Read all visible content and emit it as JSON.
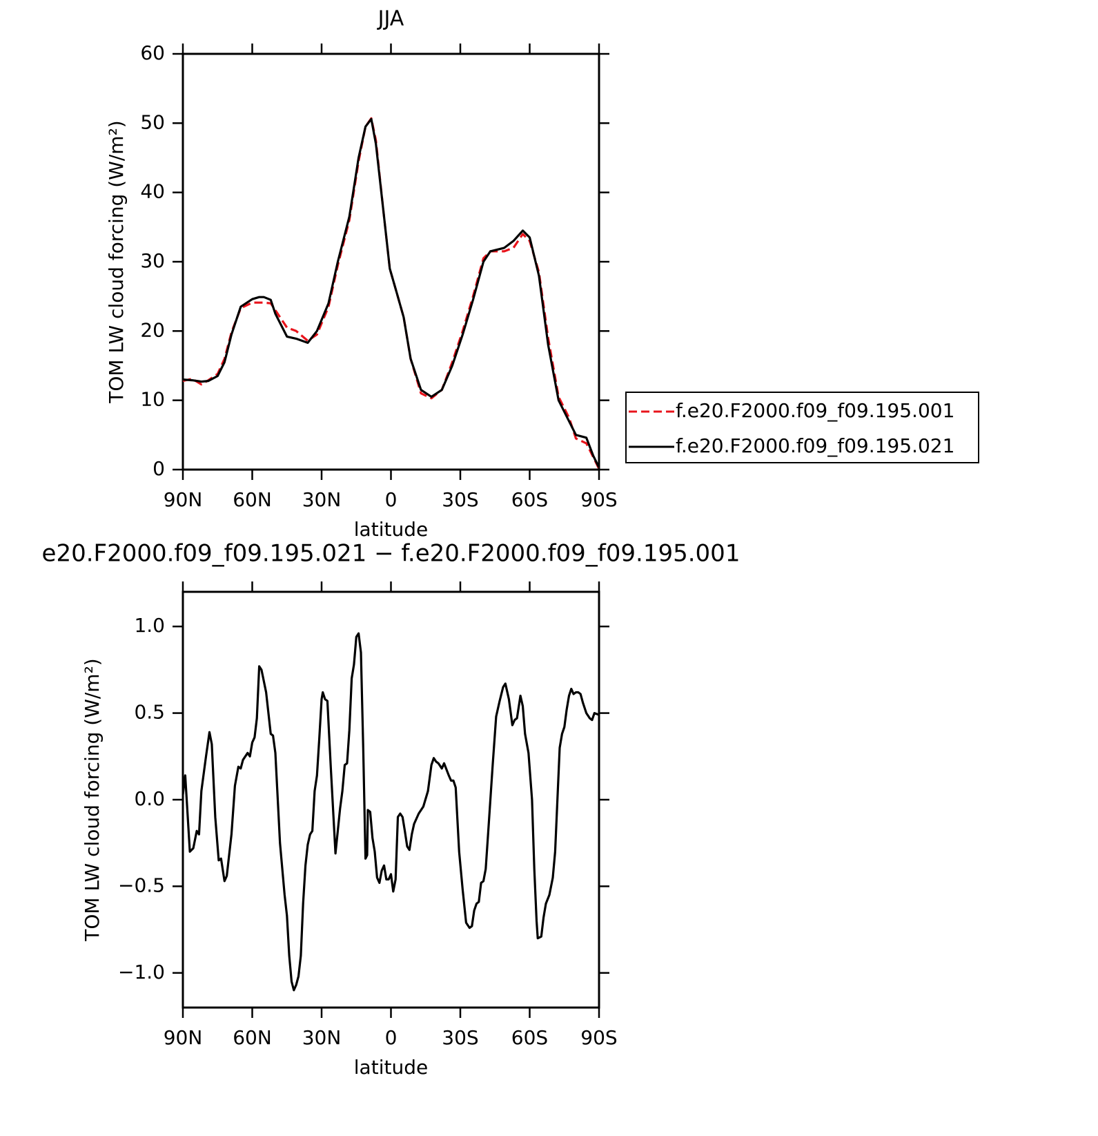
{
  "chart_data": [
    {
      "type": "line",
      "title": "JJA",
      "x_label": "latitude",
      "y_label": "TOM LW cloud forcing (W/m²)",
      "xlim": [
        90,
        -90
      ],
      "ylim": [
        0,
        60
      ],
      "xticks": [
        {
          "value": 90,
          "label": "90N"
        },
        {
          "value": 60,
          "label": "60N"
        },
        {
          "value": 30,
          "label": "30N"
        },
        0,
        {
          "value": -30,
          "label": "30S"
        },
        {
          "value": -60,
          "label": "60S"
        },
        {
          "value": -90,
          "label": "90S"
        }
      ],
      "yticks": [
        0,
        10,
        20,
        30,
        40,
        50,
        60
      ],
      "legend": "right",
      "x": [
        90,
        86,
        82,
        79,
        75,
        72,
        69,
        65,
        60,
        57,
        55,
        52,
        50,
        45,
        41,
        36,
        32,
        27,
        23,
        18,
        14,
        11,
        8.5,
        6.5,
        3.5,
        0.5,
        -2.5,
        -5.5,
        -8.5,
        -13,
        -17.5,
        -22,
        -26.5,
        -31,
        -35.5,
        -40,
        -43,
        -49,
        -53,
        -57,
        -60,
        -64,
        -68,
        -72.5,
        -77,
        -80,
        -84.5,
        -87.5,
        -90
      ],
      "series": [
        {
          "name": "f.e20.F2000.f09_f09.195.001",
          "color": "#e8141c",
          "style": "dashed",
          "values": [
            12.8,
            13.1,
            12.3,
            12.9,
            13.8,
            16,
            19.8,
            23.3,
            24.1,
            24.1,
            24.1,
            24,
            23,
            20.5,
            20,
            18.6,
            19.5,
            23.5,
            29.5,
            36,
            44.5,
            49.5,
            50.7,
            47.5,
            38,
            29,
            25.5,
            22,
            16,
            11,
            10.3,
            11.5,
            15.5,
            20,
            25,
            30.5,
            31.5,
            31.5,
            32,
            34,
            33,
            28.5,
            19,
            10.5,
            7.5,
            4.5,
            3.8,
            1.8,
            0.1
          ]
        },
        {
          "name": "f.e20.F2000.f09_f09.195.021",
          "color": "#000000",
          "style": "solid",
          "values": [
            13.0,
            12.9,
            12.7,
            12.8,
            13.5,
            15.5,
            19.5,
            23.5,
            24.6,
            24.9,
            24.9,
            24.5,
            22.5,
            19.2,
            18.9,
            18.3,
            20,
            24,
            30,
            36.5,
            45,
            49.5,
            50.6,
            47,
            38,
            29,
            25.5,
            22,
            16,
            11.5,
            10.5,
            11.5,
            15,
            19.5,
            24.5,
            30,
            31.5,
            32,
            33,
            34.5,
            33.5,
            28,
            18,
            10,
            7,
            5,
            4.6,
            2,
            0.3
          ]
        }
      ]
    },
    {
      "type": "line",
      "title": "e20.F2000.f09_f09.195.021 − f.e20.F2000.f09_f09.195.001",
      "x_label": "latitude",
      "y_label": "TOM LW cloud forcing (W/m²)",
      "xlim": [
        90,
        -90
      ],
      "ylim": [
        -1.2,
        1.2
      ],
      "xticks": [
        {
          "value": 90,
          "label": "90N"
        },
        {
          "value": 60,
          "label": "60N"
        },
        {
          "value": 30,
          "label": "30N"
        },
        0,
        {
          "value": -30,
          "label": "30S"
        },
        {
          "value": -60,
          "label": "60S"
        },
        {
          "value": -90,
          "label": "90S"
        }
      ],
      "yticks": [
        {
          "value": -1,
          "label": "−1.0"
        },
        {
          "value": -0.5,
          "label": "−0.5"
        },
        {
          "value": 0,
          "label": "0.0"
        },
        0.5,
        {
          "value": 1,
          "label": "1.0"
        }
      ],
      "x": [
        90,
        89,
        87,
        85.5,
        84,
        83,
        82,
        80,
        78.5,
        77.5,
        76,
        74.5,
        73.5,
        72,
        71,
        69,
        67.5,
        66,
        65,
        64,
        62,
        61,
        60,
        59,
        58,
        57,
        56,
        54,
        52,
        51,
        50,
        48,
        46,
        45,
        44,
        43,
        42,
        41,
        40,
        39,
        38,
        37,
        36,
        35,
        34,
        33,
        32,
        31,
        30,
        29.5,
        28.5,
        27.5,
        26,
        24,
        22,
        21,
        20,
        19,
        18,
        17,
        16,
        15,
        14,
        13,
        12,
        11,
        10.3,
        10,
        9,
        8,
        7,
        6,
        5,
        4,
        3,
        2,
        1,
        0,
        -1,
        -2,
        -3,
        -4,
        -5,
        -6,
        -7,
        -8,
        -9,
        -10,
        -12,
        -14,
        -16,
        -17.5,
        -18.5,
        -19.5,
        -20.5,
        -22,
        -23,
        -25,
        -26,
        -27,
        -28,
        -29.5,
        -31,
        -32.5,
        -34,
        -35,
        -36,
        -37,
        -38,
        -39,
        -40,
        -41,
        -42,
        -44,
        -45.5,
        -47,
        -48.5,
        -49.5,
        -51,
        -52.5,
        -53.5,
        -54.5,
        -56,
        -57,
        -58,
        -59.5,
        -61,
        -62,
        -63,
        -63.5,
        -65,
        -66,
        -67,
        -68.5,
        -70,
        -71,
        -72,
        -73,
        -74,
        -75,
        -76,
        -77,
        -78,
        -79,
        -80,
        -81,
        -82,
        -83,
        -84.5,
        -86,
        -87,
        -88,
        -90
      ],
      "series": [
        {
          "name": null,
          "color": "#000000",
          "style": "solid",
          "values": [
            0.03,
            0.14,
            -0.3,
            -0.28,
            -0.18,
            -0.2,
            0.05,
            0.25,
            0.39,
            0.32,
            -0.1,
            -0.35,
            -0.34,
            -0.47,
            -0.44,
            -0.2,
            0.08,
            0.19,
            0.18,
            0.23,
            0.27,
            0.25,
            0.33,
            0.36,
            0.47,
            0.77,
            0.75,
            0.62,
            0.38,
            0.37,
            0.27,
            -0.25,
            -0.55,
            -0.67,
            -0.9,
            -1.05,
            -1.1,
            -1.07,
            -1.02,
            -0.9,
            -0.6,
            -0.38,
            -0.26,
            -0.2,
            -0.18,
            0.05,
            0.14,
            0.35,
            0.58,
            0.62,
            0.58,
            0.57,
            0.18,
            -0.31,
            -0.05,
            0.05,
            0.2,
            0.21,
            0.4,
            0.7,
            0.78,
            0.94,
            0.96,
            0.85,
            0.3,
            -0.34,
            -0.32,
            -0.06,
            -0.07,
            -0.22,
            -0.3,
            -0.45,
            -0.48,
            -0.41,
            -0.38,
            -0.46,
            -0.46,
            -0.43,
            -0.53,
            -0.46,
            -0.1,
            -0.08,
            -0.1,
            -0.18,
            -0.27,
            -0.29,
            -0.2,
            -0.14,
            -0.08,
            -0.04,
            0.05,
            0.2,
            0.24,
            0.22,
            0.21,
            0.18,
            0.21,
            0.14,
            0.11,
            0.11,
            0.07,
            -0.3,
            -0.52,
            -0.71,
            -0.74,
            -0.73,
            -0.64,
            -0.6,
            -0.59,
            -0.48,
            -0.47,
            -0.4,
            -0.2,
            0.2,
            0.48,
            0.57,
            0.65,
            0.67,
            0.58,
            0.43,
            0.46,
            0.47,
            0.6,
            0.54,
            0.38,
            0.27,
            0.0,
            -0.4,
            -0.7,
            -0.8,
            -0.79,
            -0.68,
            -0.6,
            -0.55,
            -0.45,
            -0.3,
            0.0,
            0.3,
            0.38,
            0.42,
            0.52,
            0.6,
            0.64,
            0.61,
            0.62,
            0.62,
            0.61,
            0.56,
            0.5,
            0.47,
            0.46,
            0.5,
            0.49
          ]
        }
      ]
    }
  ]
}
